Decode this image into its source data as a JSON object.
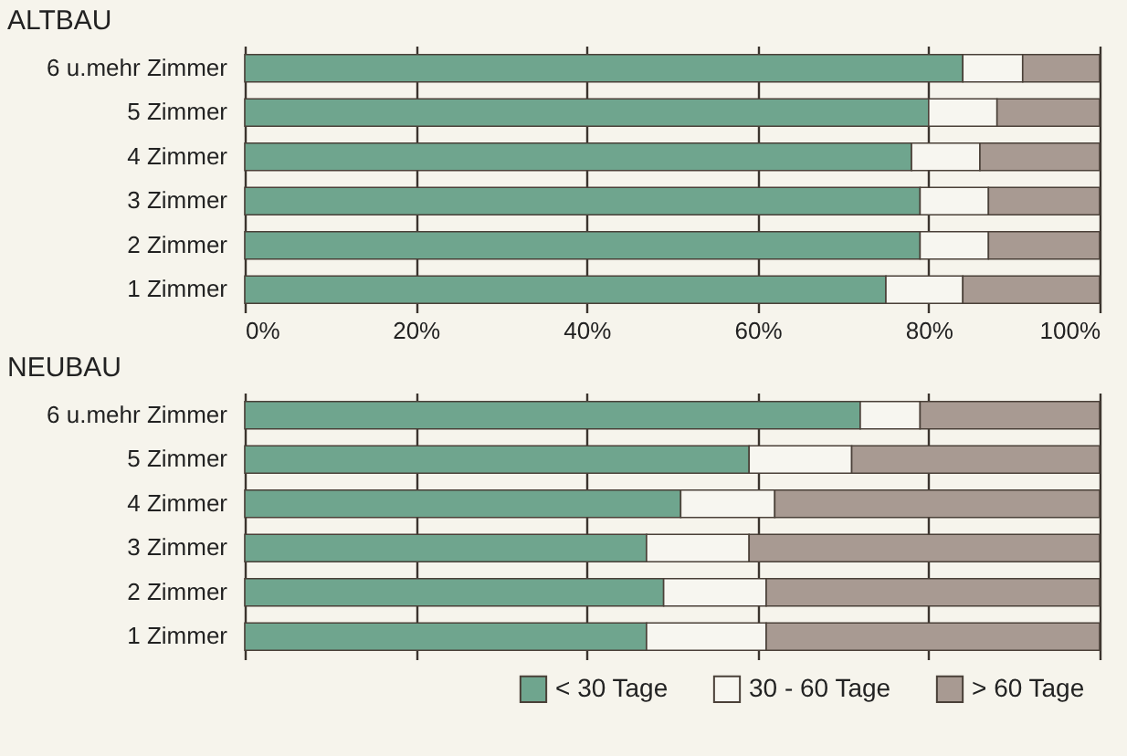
{
  "chart_data": [
    {
      "type": "bar",
      "title": "ALTBAU",
      "orientation": "horizontal",
      "stacked": true,
      "grid": "x",
      "categories": [
        "6 u.mehr Zimmer",
        "5 Zimmer",
        "4 Zimmer",
        "3 Zimmer",
        "2 Zimmer",
        "1 Zimmer"
      ],
      "xlim": [
        0,
        100
      ],
      "xticks": [
        {
          "value": 0,
          "label": "0%"
        },
        {
          "value": 20,
          "label": "20%"
        },
        {
          "value": 40,
          "label": "40%"
        },
        {
          "value": 60,
          "label": "60%"
        },
        {
          "value": 80,
          "label": "80%"
        },
        {
          "value": 100,
          "label": "100%"
        }
      ],
      "series": [
        {
          "color": "#6fa58e",
          "values": [
            84,
            80,
            78,
            79,
            79,
            75
          ]
        },
        {
          "color": "#f7f6f0",
          "values": [
            7,
            8,
            8,
            8,
            8,
            9
          ]
        },
        {
          "color": "#a89a92",
          "values": [
            9,
            12,
            14,
            13,
            13,
            16
          ]
        }
      ]
    },
    {
      "type": "bar",
      "title": "NEUBAU",
      "orientation": "horizontal",
      "stacked": true,
      "grid": "x",
      "tick_labels": "y",
      "categories": [
        "6 u.mehr Zimmer",
        "5 Zimmer",
        "4 Zimmer",
        "3 Zimmer",
        "2 Zimmer",
        "1 Zimmer"
      ],
      "xlim": [
        0,
        100
      ],
      "xticks": [
        0,
        20,
        40,
        60,
        80,
        100
      ],
      "legend": "bottom right",
      "series": [
        {
          "name": "< 30 Tage",
          "color": "#6fa58e",
          "values": [
            72,
            59,
            51,
            47,
            49,
            47
          ]
        },
        {
          "name": "30 - 60 Tage",
          "color": "#f7f6f0",
          "values": [
            7,
            12,
            11,
            12,
            12,
            14
          ]
        },
        {
          "name": "> 60 Tage",
          "color": "#a89a92",
          "values": [
            21,
            29,
            38,
            41,
            39,
            39
          ]
        }
      ]
    }
  ]
}
